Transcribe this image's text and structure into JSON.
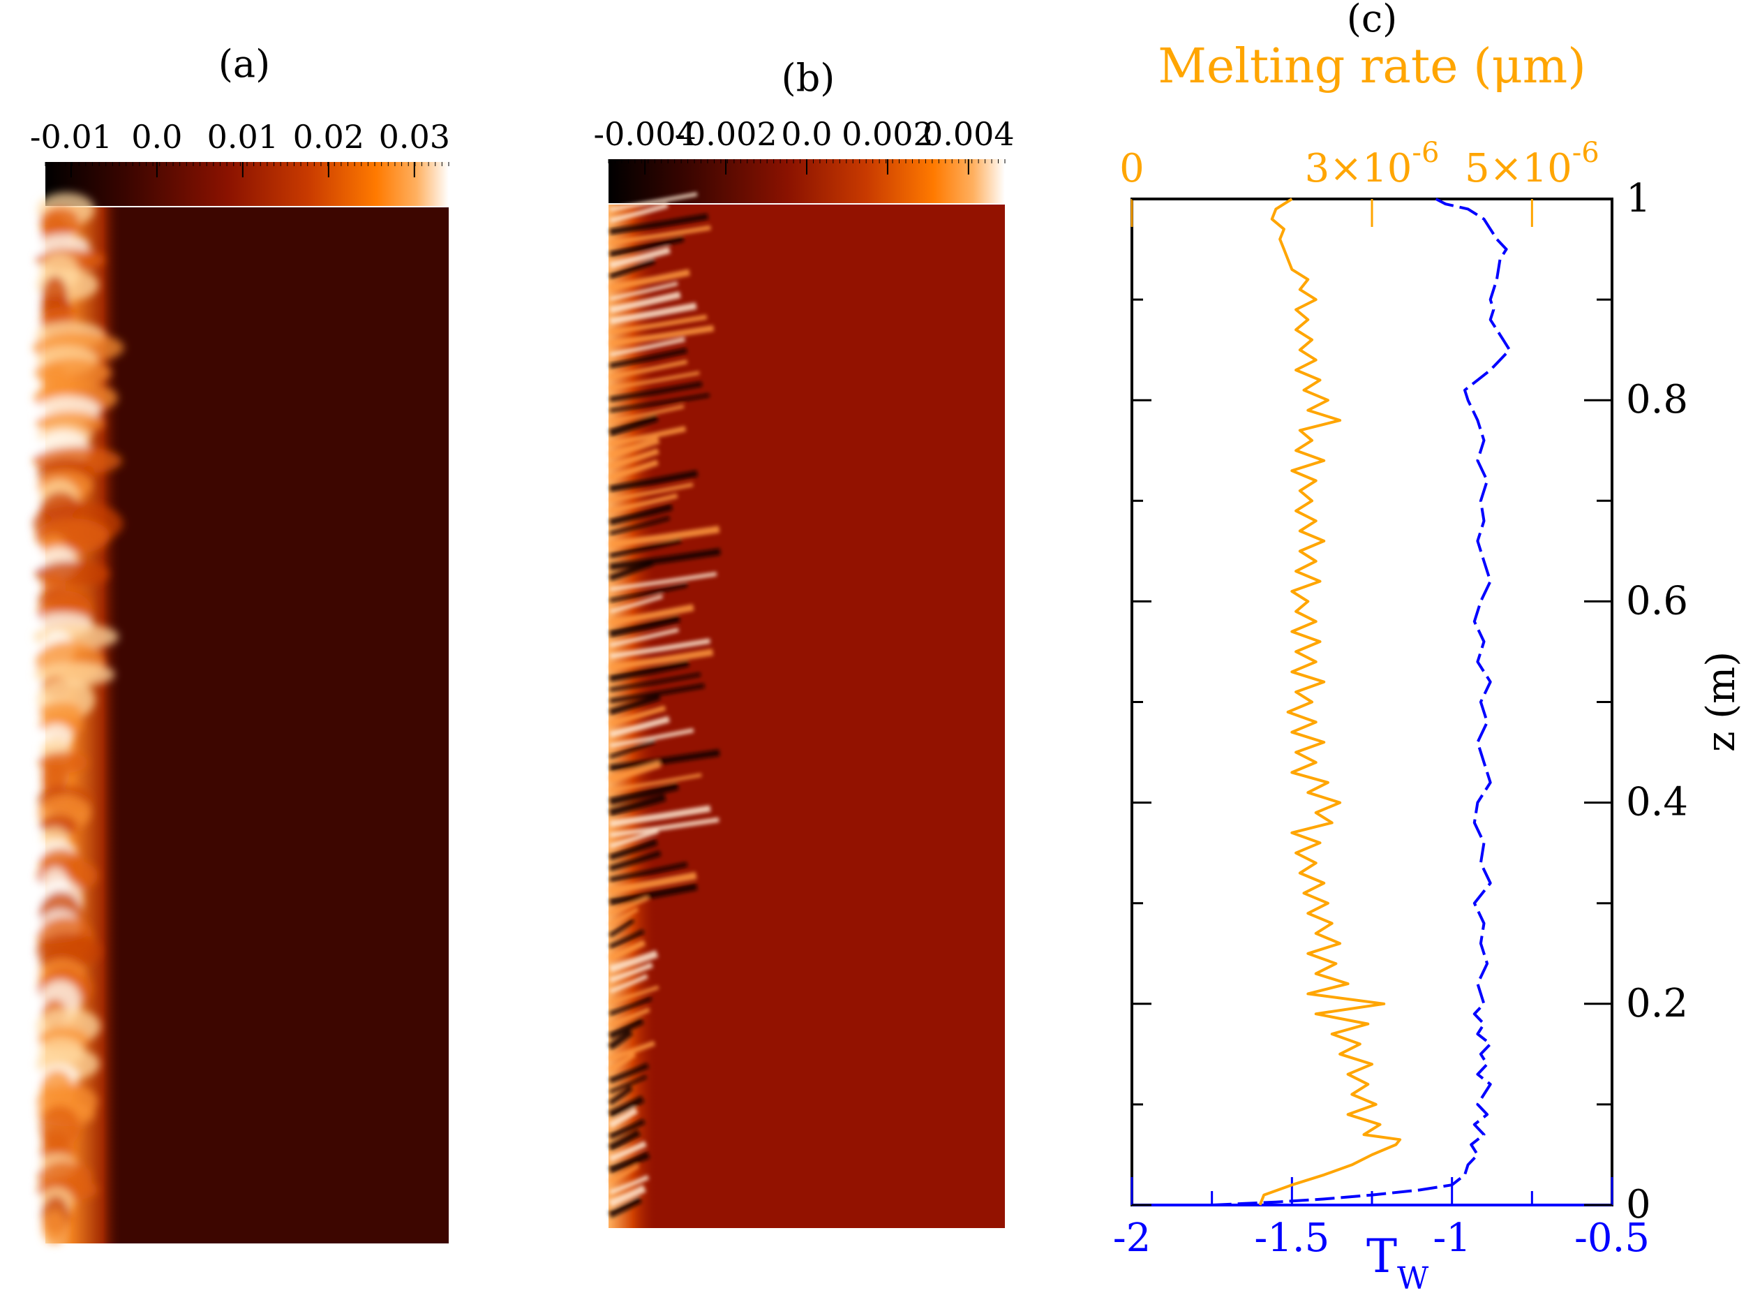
{
  "panel_labels": {
    "a": "(a)",
    "b": "(b)",
    "c": "(c)"
  },
  "chart_data": [
    {
      "type": "heatmap",
      "panel": "(a)",
      "colorbar": {
        "ticks": [
          "-0.01",
          "0.0",
          "0.01",
          "0.02",
          "0.03"
        ],
        "range": [
          -0.013,
          0.034
        ],
        "colors": [
          "#000000",
          "#3a0500",
          "#8a1200",
          "#c83a00",
          "#ff7a00",
          "#ffb060",
          "#ffffff"
        ]
      },
      "field_description": "bright orange/white turbulent boundary layer along left wall, dark maroon interior"
    },
    {
      "type": "heatmap",
      "panel": "(b)",
      "colorbar": {
        "ticks": [
          "-0.004",
          "-0.002",
          "0.0",
          "0.002",
          "0.004"
        ],
        "range": [
          -0.0049,
          0.0049
        ],
        "colors": [
          "#000000",
          "#3a0500",
          "#8a1200",
          "#c83a00",
          "#ff7a00",
          "#ffb060",
          "#ffffff"
        ]
      },
      "field_description": "alternating dark/bright streaks along left wall, uniform red interior"
    },
    {
      "type": "line",
      "panel": "(c)",
      "top_axis": {
        "label": "Melting rate (μm)",
        "color": "#FFA500",
        "range": [
          0,
          6e-06
        ],
        "ticks": [
          {
            "value": 0,
            "label": "0"
          },
          {
            "value": 3e-06,
            "base": "3×10",
            "exp": "-6"
          },
          {
            "value": 5e-06,
            "base": "5×10",
            "exp": "-6"
          }
        ]
      },
      "bottom_axis": {
        "label_main": "T",
        "label_sub": "W",
        "color": "#0000FF",
        "range": [
          -2,
          -0.5
        ],
        "ticks": [
          "-2",
          "-1.5",
          "-1",
          "-0.5"
        ]
      },
      "right_axis": {
        "label": "z (m)",
        "range": [
          0,
          1
        ],
        "ticks": [
          "0",
          "0.2",
          "0.4",
          "0.6",
          "0.8",
          "1"
        ]
      },
      "series": [
        {
          "color": "#FFA500",
          "style": "solid",
          "axis": "top",
          "z": [
            0.0,
            0.01,
            0.02,
            0.03,
            0.04,
            0.05,
            0.06,
            0.065,
            0.07,
            0.08,
            0.09,
            0.1,
            0.11,
            0.12,
            0.13,
            0.14,
            0.15,
            0.16,
            0.17,
            0.18,
            0.19,
            0.2,
            0.21,
            0.22,
            0.23,
            0.24,
            0.25,
            0.26,
            0.27,
            0.28,
            0.29,
            0.3,
            0.31,
            0.32,
            0.33,
            0.34,
            0.35,
            0.36,
            0.37,
            0.38,
            0.39,
            0.4,
            0.41,
            0.42,
            0.43,
            0.44,
            0.45,
            0.46,
            0.47,
            0.48,
            0.49,
            0.5,
            0.51,
            0.52,
            0.53,
            0.54,
            0.55,
            0.56,
            0.57,
            0.58,
            0.59,
            0.6,
            0.61,
            0.62,
            0.63,
            0.64,
            0.65,
            0.66,
            0.67,
            0.68,
            0.69,
            0.7,
            0.71,
            0.72,
            0.73,
            0.74,
            0.75,
            0.76,
            0.77,
            0.78,
            0.79,
            0.8,
            0.81,
            0.82,
            0.83,
            0.84,
            0.85,
            0.86,
            0.87,
            0.88,
            0.89,
            0.9,
            0.91,
            0.92,
            0.93,
            0.94,
            0.95,
            0.96,
            0.97,
            0.98,
            0.99,
            1.0
          ],
          "values": [
            1.6e-06,
            1.65e-06,
            2e-06,
            2.4e-06,
            2.75e-06,
            3e-06,
            3.3e-06,
            3.35e-06,
            2.9e-06,
            3.1e-06,
            2.7e-06,
            3.05e-06,
            2.75e-06,
            2.95e-06,
            2.7e-06,
            3e-06,
            2.6e-06,
            2.85e-06,
            2.5e-06,
            2.95e-06,
            2.3e-06,
            3.15e-06,
            2.2e-06,
            2.7e-06,
            2.3e-06,
            2.55e-06,
            2.2e-06,
            2.6e-06,
            2.3e-06,
            2.5e-06,
            2.2e-06,
            2.45e-06,
            2.15e-06,
            2.4e-06,
            2.1e-06,
            2.3e-06,
            2.05e-06,
            2.35e-06,
            2e-06,
            2.5e-06,
            2.3e-06,
            2.6e-06,
            2.2e-06,
            2.45e-06,
            2e-06,
            2.3e-06,
            2.05e-06,
            2.4e-06,
            2e-06,
            2.3e-06,
            1.95e-06,
            2.25e-06,
            2.05e-06,
            2.4e-06,
            2e-06,
            2.3e-06,
            2.05e-06,
            2.35e-06,
            2e-06,
            2.3e-06,
            2.05e-06,
            2.2e-06,
            2e-06,
            2.35e-06,
            2.05e-06,
            2.3e-06,
            2.1e-06,
            2.4e-06,
            2.1e-06,
            2.3e-06,
            2.05e-06,
            2.25e-06,
            2.1e-06,
            2.3e-06,
            2e-06,
            2.4e-06,
            2.05e-06,
            2.25e-06,
            2.1e-06,
            2.6e-06,
            2.2e-06,
            2.45e-06,
            2.15e-06,
            2.35e-06,
            2.05e-06,
            2.3e-06,
            2.1e-06,
            2.25e-06,
            2.05e-06,
            2.2e-06,
            2.05e-06,
            2.3e-06,
            2.1e-06,
            2.2e-06,
            2e-06,
            1.95e-06,
            1.9e-06,
            1.85e-06,
            1.9e-06,
            1.75e-06,
            1.8e-06,
            2e-06
          ]
        },
        {
          "color": "#0000FF",
          "style": "dashed",
          "axis": "bottom",
          "z": [
            0.0,
            0.003,
            0.006,
            0.01,
            0.015,
            0.02,
            0.025,
            0.03,
            0.04,
            0.05,
            0.06,
            0.07,
            0.08,
            0.09,
            0.1,
            0.11,
            0.12,
            0.13,
            0.14,
            0.15,
            0.16,
            0.17,
            0.18,
            0.19,
            0.2,
            0.22,
            0.24,
            0.26,
            0.28,
            0.3,
            0.32,
            0.34,
            0.36,
            0.38,
            0.4,
            0.42,
            0.44,
            0.46,
            0.48,
            0.5,
            0.52,
            0.54,
            0.56,
            0.58,
            0.6,
            0.62,
            0.64,
            0.66,
            0.68,
            0.7,
            0.72,
            0.74,
            0.76,
            0.78,
            0.8,
            0.81,
            0.82,
            0.83,
            0.84,
            0.85,
            0.86,
            0.87,
            0.88,
            0.89,
            0.9,
            0.92,
            0.94,
            0.95,
            0.96,
            0.97,
            0.98,
            0.99,
            0.995,
            1.0
          ],
          "values": [
            -1.75,
            -1.55,
            -1.4,
            -1.25,
            -1.1,
            -1.0,
            -0.98,
            -0.96,
            -0.95,
            -0.92,
            -0.94,
            -0.9,
            -0.93,
            -0.89,
            -0.92,
            -0.9,
            -0.88,
            -0.92,
            -0.89,
            -0.91,
            -0.88,
            -0.92,
            -0.9,
            -0.93,
            -0.9,
            -0.92,
            -0.89,
            -0.91,
            -0.9,
            -0.93,
            -0.88,
            -0.91,
            -0.9,
            -0.93,
            -0.92,
            -0.88,
            -0.9,
            -0.92,
            -0.89,
            -0.91,
            -0.88,
            -0.92,
            -0.9,
            -0.93,
            -0.91,
            -0.88,
            -0.9,
            -0.92,
            -0.9,
            -0.91,
            -0.89,
            -0.92,
            -0.9,
            -0.92,
            -0.95,
            -0.96,
            -0.92,
            -0.88,
            -0.85,
            -0.82,
            -0.84,
            -0.86,
            -0.88,
            -0.87,
            -0.88,
            -0.86,
            -0.85,
            -0.83,
            -0.86,
            -0.88,
            -0.9,
            -0.95,
            -1.02,
            -1.05
          ]
        }
      ]
    }
  ]
}
